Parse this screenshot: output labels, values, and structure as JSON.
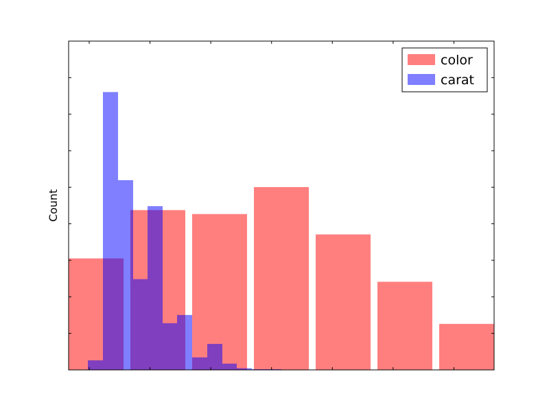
{
  "chart_data": {
    "type": "bar",
    "ylabel": "Count",
    "xlim": [
      0,
      620
    ],
    "ylim": [
      0,
      100
    ],
    "grid": false,
    "legend_position": "top-right",
    "series": [
      {
        "name": "color",
        "color": "#ff0000",
        "opacity": 0.5,
        "bars": [
          {
            "x0": 0,
            "x1": 80,
            "height": 33.9
          },
          {
            "x0": 90,
            "x1": 170,
            "height": 48.6
          },
          {
            "x0": 180,
            "x1": 260,
            "height": 47.4
          },
          {
            "x0": 270,
            "x1": 350,
            "height": 55.6
          },
          {
            "x0": 360,
            "x1": 440,
            "height": 41.2
          },
          {
            "x0": 450,
            "x1": 530,
            "height": 26.8
          },
          {
            "x0": 540,
            "x1": 620,
            "height": 14.0
          }
        ]
      },
      {
        "name": "carat",
        "color": "#0000ff",
        "opacity": 0.5,
        "bars": [
          {
            "x0": 28,
            "x1": 50,
            "height": 2.9
          },
          {
            "x0": 50,
            "x1": 72,
            "height": 84.5
          },
          {
            "x0": 72,
            "x1": 94,
            "height": 57.7
          },
          {
            "x0": 94,
            "x1": 115,
            "height": 27.6
          },
          {
            "x0": 115,
            "x1": 137,
            "height": 49.8
          },
          {
            "x0": 137,
            "x1": 158,
            "height": 14.2
          },
          {
            "x0": 158,
            "x1": 180,
            "height": 16.7
          },
          {
            "x0": 180,
            "x1": 202,
            "height": 3.8
          },
          {
            "x0": 202,
            "x1": 224,
            "height": 7.9
          },
          {
            "x0": 224,
            "x1": 245,
            "height": 1.9
          },
          {
            "x0": 245,
            "x1": 267,
            "height": 0.5
          },
          {
            "x0": 267,
            "x1": 310,
            "height": 0.2
          }
        ]
      }
    ]
  }
}
